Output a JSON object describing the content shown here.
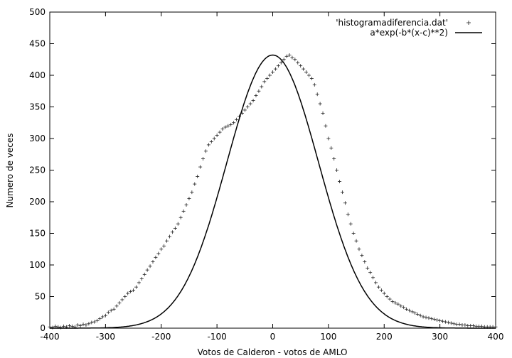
{
  "chart_data": {
    "type": "scatter",
    "title": "",
    "xlabel": "Votos de Calderon - votos de AMLO",
    "ylabel": "Numero de veces",
    "xlim": [
      -400,
      400
    ],
    "ylim": [
      0,
      500
    ],
    "xticks": [
      -400,
      -300,
      -200,
      -100,
      0,
      100,
      200,
      300,
      400
    ],
    "yticks": [
      0,
      50,
      100,
      150,
      200,
      250,
      300,
      350,
      400,
      450,
      500
    ],
    "grid": false,
    "legend_position": "top-right",
    "series": [
      {
        "name": "'histogramadiferencia.dat'",
        "marker": "+",
        "color": "#000000",
        "points": [
          [
            -400,
            2
          ],
          [
            -395,
            1
          ],
          [
            -390,
            3
          ],
          [
            -385,
            2
          ],
          [
            -380,
            1
          ],
          [
            -375,
            3
          ],
          [
            -370,
            2
          ],
          [
            -365,
            4
          ],
          [
            -360,
            3
          ],
          [
            -355,
            2
          ],
          [
            -350,
            5
          ],
          [
            -345,
            4
          ],
          [
            -340,
            6
          ],
          [
            -335,
            5
          ],
          [
            -330,
            7
          ],
          [
            -325,
            9
          ],
          [
            -320,
            10
          ],
          [
            -315,
            12
          ],
          [
            -310,
            15
          ],
          [
            -305,
            18
          ],
          [
            -300,
            20
          ],
          [
            -295,
            25
          ],
          [
            -290,
            28
          ],
          [
            -285,
            30
          ],
          [
            -280,
            35
          ],
          [
            -275,
            40
          ],
          [
            -270,
            45
          ],
          [
            -265,
            50
          ],
          [
            -260,
            55
          ],
          [
            -255,
            58
          ],
          [
            -250,
            60
          ],
          [
            -245,
            65
          ],
          [
            -240,
            72
          ],
          [
            -235,
            78
          ],
          [
            -230,
            85
          ],
          [
            -225,
            92
          ],
          [
            -220,
            98
          ],
          [
            -215,
            105
          ],
          [
            -210,
            112
          ],
          [
            -205,
            118
          ],
          [
            -200,
            125
          ],
          [
            -195,
            130
          ],
          [
            -190,
            138
          ],
          [
            -185,
            145
          ],
          [
            -180,
            152
          ],
          [
            -175,
            158
          ],
          [
            -170,
            165
          ],
          [
            -165,
            175
          ],
          [
            -160,
            185
          ],
          [
            -155,
            195
          ],
          [
            -150,
            205
          ],
          [
            -145,
            215
          ],
          [
            -140,
            228
          ],
          [
            -135,
            240
          ],
          [
            -130,
            255
          ],
          [
            -125,
            268
          ],
          [
            -120,
            280
          ],
          [
            -115,
            290
          ],
          [
            -110,
            295
          ],
          [
            -105,
            300
          ],
          [
            -100,
            305
          ],
          [
            -95,
            310
          ],
          [
            -90,
            315
          ],
          [
            -85,
            318
          ],
          [
            -80,
            320
          ],
          [
            -75,
            322
          ],
          [
            -70,
            325
          ],
          [
            -65,
            330
          ],
          [
            -60,
            335
          ],
          [
            -55,
            340
          ],
          [
            -50,
            345
          ],
          [
            -45,
            350
          ],
          [
            -40,
            355
          ],
          [
            -35,
            360
          ],
          [
            -30,
            368
          ],
          [
            -25,
            375
          ],
          [
            -20,
            382
          ],
          [
            -15,
            390
          ],
          [
            -10,
            395
          ],
          [
            -5,
            400
          ],
          [
            0,
            405
          ],
          [
            5,
            410
          ],
          [
            10,
            415
          ],
          [
            15,
            420
          ],
          [
            20,
            425
          ],
          [
            25,
            430
          ],
          [
            30,
            432
          ],
          [
            35,
            428
          ],
          [
            40,
            425
          ],
          [
            45,
            420
          ],
          [
            50,
            415
          ],
          [
            55,
            410
          ],
          [
            60,
            405
          ],
          [
            65,
            400
          ],
          [
            70,
            395
          ],
          [
            75,
            385
          ],
          [
            80,
            370
          ],
          [
            85,
            355
          ],
          [
            90,
            340
          ],
          [
            95,
            320
          ],
          [
            100,
            300
          ],
          [
            105,
            285
          ],
          [
            110,
            268
          ],
          [
            115,
            250
          ],
          [
            120,
            232
          ],
          [
            125,
            215
          ],
          [
            130,
            198
          ],
          [
            135,
            180
          ],
          [
            140,
            165
          ],
          [
            145,
            150
          ],
          [
            150,
            138
          ],
          [
            155,
            125
          ],
          [
            160,
            115
          ],
          [
            165,
            105
          ],
          [
            170,
            95
          ],
          [
            175,
            88
          ],
          [
            180,
            80
          ],
          [
            185,
            72
          ],
          [
            190,
            65
          ],
          [
            195,
            60
          ],
          [
            200,
            55
          ],
          [
            205,
            50
          ],
          [
            210,
            46
          ],
          [
            215,
            42
          ],
          [
            220,
            40
          ],
          [
            225,
            38
          ],
          [
            230,
            35
          ],
          [
            235,
            33
          ],
          [
            240,
            30
          ],
          [
            245,
            28
          ],
          [
            250,
            26
          ],
          [
            255,
            24
          ],
          [
            260,
            22
          ],
          [
            265,
            20
          ],
          [
            270,
            18
          ],
          [
            275,
            17
          ],
          [
            280,
            16
          ],
          [
            285,
            15
          ],
          [
            290,
            14
          ],
          [
            295,
            13
          ],
          [
            300,
            12
          ],
          [
            305,
            11
          ],
          [
            310,
            10
          ],
          [
            315,
            9
          ],
          [
            320,
            8
          ],
          [
            325,
            7
          ],
          [
            330,
            6
          ],
          [
            335,
            6
          ],
          [
            340,
            5
          ],
          [
            345,
            5
          ],
          [
            350,
            4
          ],
          [
            355,
            4
          ],
          [
            360,
            4
          ],
          [
            365,
            3
          ],
          [
            370,
            3
          ],
          [
            375,
            3
          ],
          [
            380,
            2
          ],
          [
            385,
            2
          ],
          [
            390,
            2
          ],
          [
            395,
            2
          ],
          [
            400,
            2
          ]
        ]
      },
      {
        "name": "a*exp(-b*(x-c)**2)",
        "style": "line",
        "color": "#000000",
        "function": {
          "a": 432,
          "b": 7.38e-05,
          "c": 0
        }
      }
    ]
  }
}
